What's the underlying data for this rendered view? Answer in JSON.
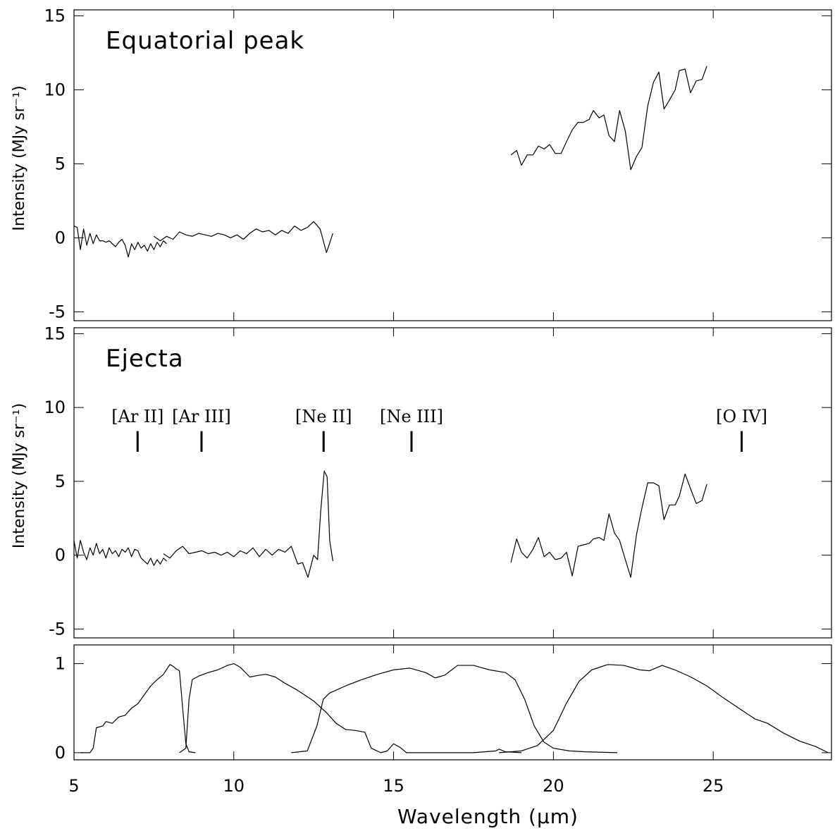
{
  "chart_data": [
    {
      "type": "line",
      "title": "Equatorial peak",
      "ylabel": "Intensity (MJy sr⁻¹)",
      "xlim": [
        5,
        28.7
      ],
      "xticks": [
        5,
        10,
        15,
        20,
        25
      ],
      "ylim": [
        -5.6,
        15.4
      ],
      "yticks": [
        -5,
        0,
        5,
        10,
        15
      ],
      "grid": false,
      "series": [
        {
          "color": "#000000",
          "x": [
            5.0,
            5.1,
            5.2,
            5.3,
            5.4,
            5.5,
            5.6,
            5.7,
            5.8,
            5.9,
            6.0,
            6.1,
            6.2,
            6.3,
            6.4,
            6.5,
            6.6,
            6.7,
            6.8,
            6.9,
            7.0,
            7.1,
            7.2,
            7.3,
            7.4,
            7.5,
            7.6,
            7.7,
            7.8,
            7.9
          ],
          "values": [
            0.8,
            0.7,
            -0.8,
            0.6,
            -0.5,
            0.3,
            -0.4,
            0.2,
            -0.2,
            -0.2,
            -0.3,
            -0.2,
            -0.4,
            -0.6,
            -0.3,
            -0.1,
            -0.5,
            -1.3,
            -0.4,
            -0.8,
            -0.3,
            -0.7,
            -0.5,
            -0.9,
            -0.4,
            -0.8,
            -0.3,
            -0.6,
            -0.2,
            -0.4
          ]
        },
        {
          "color": "#000000",
          "x": [
            7.5,
            7.7,
            7.9,
            8.1,
            8.3,
            8.5,
            8.7,
            8.9,
            9.1,
            9.3,
            9.5,
            9.7,
            9.9,
            10.1,
            10.3,
            10.5,
            10.7,
            10.9,
            11.1,
            11.3,
            11.5,
            11.7,
            11.9,
            12.1,
            12.3,
            12.5,
            12.7,
            12.9,
            13.1
          ],
          "values": [
            0.1,
            -0.2,
            0.1,
            -0.1,
            0.4,
            0.2,
            0.1,
            0.3,
            0.2,
            0.1,
            0.3,
            0.2,
            0.0,
            0.2,
            -0.1,
            0.3,
            0.6,
            0.4,
            0.5,
            0.2,
            0.5,
            0.3,
            0.8,
            0.5,
            0.7,
            1.1,
            0.6,
            -1.0,
            0.3
          ]
        },
        {
          "color": "#000000",
          "x": [
            18.67,
            18.85,
            19.0,
            19.18,
            19.36,
            19.53,
            19.71,
            19.88,
            20.06,
            20.24,
            20.41,
            20.59,
            20.77,
            20.94,
            21.12,
            21.25,
            21.43,
            21.58,
            21.74,
            21.91,
            22.07,
            22.25,
            22.42,
            22.6,
            22.77,
            22.95,
            23.13,
            23.3,
            23.46,
            23.63,
            23.81,
            23.94,
            24.12,
            24.29,
            24.47,
            24.65,
            24.8
          ],
          "values": [
            5.6,
            5.9,
            4.9,
            5.6,
            5.6,
            6.2,
            6.0,
            6.3,
            5.7,
            5.7,
            6.5,
            7.3,
            7.8,
            7.8,
            8.0,
            8.6,
            8.1,
            8.3,
            6.9,
            6.5,
            8.6,
            7.2,
            4.6,
            5.5,
            6.1,
            8.9,
            10.5,
            11.2,
            8.7,
            9.3,
            10.0,
            11.3,
            11.4,
            9.8,
            10.6,
            10.7,
            11.6
          ]
        }
      ]
    },
    {
      "type": "line",
      "title": "Ejecta",
      "ylabel": "Intensity (MJy sr⁻¹)",
      "xlim": [
        5,
        28.7
      ],
      "xticks": [
        5,
        10,
        15,
        20,
        25
      ],
      "ylim": [
        -5.6,
        15.4
      ],
      "yticks": [
        -5,
        0,
        5,
        10,
        15
      ],
      "grid": false,
      "lines": [
        {
          "label": "[Ar II]",
          "x": 6.99
        },
        {
          "label": "[Ar III]",
          "x": 8.99
        },
        {
          "label": "[Ne II]",
          "x": 12.81
        },
        {
          "label": "[Ne III]",
          "x": 15.56
        },
        {
          "label": "[O IV]",
          "x": 25.89
        }
      ],
      "series": [
        {
          "color": "#000000",
          "x": [
            5.0,
            5.1,
            5.2,
            5.3,
            5.4,
            5.5,
            5.6,
            5.7,
            5.8,
            5.9,
            6.0,
            6.1,
            6.2,
            6.3,
            6.4,
            6.5,
            6.6,
            6.7,
            6.8,
            6.9,
            7.0,
            7.1,
            7.2,
            7.3,
            7.4,
            7.5,
            7.6,
            7.7,
            7.8,
            7.9
          ],
          "values": [
            1.0,
            -0.2,
            1.0,
            0.2,
            -0.3,
            0.5,
            0.0,
            0.8,
            0.1,
            0.4,
            -0.2,
            0.5,
            0.1,
            0.3,
            -0.1,
            0.4,
            0.2,
            0.5,
            -0.1,
            0.4,
            0.3,
            -0.2,
            -0.4,
            -0.6,
            -0.2,
            -0.7,
            -0.3,
            -0.6,
            -0.2,
            -0.4
          ]
        },
        {
          "color": "#000000",
          "x": [
            7.8,
            8.0,
            8.2,
            8.4,
            8.6,
            8.8,
            9.0,
            9.2,
            9.4,
            9.6,
            9.8,
            10.0,
            10.2,
            10.4,
            10.6,
            10.8,
            11.0,
            11.2,
            11.4,
            11.6,
            11.8,
            12.0,
            12.15,
            12.32,
            12.5,
            12.62,
            12.72,
            12.83,
            12.92,
            13.0,
            13.1
          ],
          "values": [
            0.1,
            -0.2,
            0.3,
            0.6,
            0.1,
            0.2,
            0.3,
            0.1,
            0.2,
            0.0,
            0.2,
            -0.1,
            0.3,
            0.1,
            0.5,
            -0.1,
            0.4,
            0.0,
            0.4,
            0.2,
            0.6,
            -0.6,
            -0.5,
            -1.5,
            0.0,
            -0.3,
            3.0,
            5.7,
            5.3,
            1.0,
            -0.4
          ]
        },
        {
          "color": "#000000",
          "x": [
            18.67,
            18.85,
            19.0,
            19.18,
            19.36,
            19.53,
            19.71,
            19.88,
            20.06,
            20.24,
            20.41,
            20.59,
            20.77,
            20.94,
            21.12,
            21.25,
            21.43,
            21.58,
            21.74,
            21.91,
            22.07,
            22.25,
            22.42,
            22.6,
            22.77,
            22.95,
            23.13,
            23.3,
            23.46,
            23.63,
            23.81,
            23.94,
            24.12,
            24.29,
            24.47,
            24.65,
            24.8
          ],
          "values": [
            -0.5,
            1.1,
            0.2,
            -0.2,
            0.4,
            1.2,
            -0.1,
            0.2,
            -0.3,
            -0.2,
            0.2,
            -1.4,
            0.6,
            0.7,
            0.8,
            1.1,
            1.2,
            1.0,
            2.8,
            1.5,
            1.0,
            -0.3,
            -1.5,
            1.4,
            3.2,
            4.9,
            4.9,
            4.7,
            2.4,
            3.4,
            3.4,
            4.0,
            5.5,
            4.5,
            3.5,
            3.7,
            4.8
          ]
        }
      ]
    },
    {
      "type": "line",
      "xlabel": "Wavelength (μm)",
      "xlim": [
        5,
        28.7
      ],
      "xticks": [
        5,
        10,
        15,
        20,
        25
      ],
      "ylim": [
        -0.08,
        1.21
      ],
      "yticks": [
        0,
        1
      ],
      "grid": false,
      "series": [
        {
          "color": "#000000",
          "x": [
            5.2,
            5.5,
            5.6,
            5.7,
            5.9,
            6.0,
            6.2,
            6.4,
            6.6,
            6.8,
            7.0,
            7.2,
            7.4,
            7.6,
            7.8,
            8.0,
            8.1,
            8.2,
            8.3,
            8.4,
            8.5,
            8.6,
            8.8
          ],
          "values": [
            0,
            0,
            0.05,
            0.28,
            0.3,
            0.35,
            0.33,
            0.4,
            0.42,
            0.5,
            0.55,
            0.65,
            0.75,
            0.82,
            0.88,
            0.99,
            0.97,
            0.94,
            0.92,
            0.5,
            0.1,
            0.01,
            0
          ]
        },
        {
          "color": "#000000",
          "x": [
            8.3,
            8.5,
            8.6,
            8.7,
            8.9,
            9.2,
            9.5,
            9.8,
            10.0,
            10.2,
            10.5,
            10.8,
            11.0,
            11.3,
            11.6,
            12.0,
            12.5,
            12.9,
            13.2,
            13.5,
            13.8,
            14.1,
            14.3,
            14.6,
            14.8,
            15.0,
            15.2,
            15.4,
            16.0,
            17.5,
            18.2,
            18.3,
            18.5,
            19.0
          ],
          "values": [
            0,
            0.05,
            0.6,
            0.82,
            0.86,
            0.9,
            0.93,
            0.98,
            1.0,
            0.96,
            0.85,
            0.87,
            0.88,
            0.85,
            0.78,
            0.7,
            0.58,
            0.45,
            0.33,
            0.26,
            0.25,
            0.23,
            0.05,
            0,
            0.02,
            0.1,
            0.06,
            0,
            0,
            0,
            0.02,
            0.04,
            0.01,
            0
          ]
        },
        {
          "color": "#000000",
          "x": [
            11.8,
            12.3,
            12.6,
            12.8,
            13.0,
            13.5,
            14.0,
            14.5,
            15.0,
            15.5,
            16.0,
            16.3,
            16.6,
            17.0,
            17.5,
            18.0,
            18.5,
            18.8,
            19.1,
            19.4,
            19.7,
            20.0,
            20.5,
            21.0,
            22.0
          ],
          "values": [
            0,
            0.02,
            0.3,
            0.6,
            0.67,
            0.75,
            0.82,
            0.88,
            0.93,
            0.95,
            0.9,
            0.84,
            0.87,
            0.98,
            0.98,
            0.93,
            0.9,
            0.82,
            0.6,
            0.3,
            0.12,
            0.05,
            0.02,
            0.01,
            0
          ]
        },
        {
          "color": "#000000",
          "x": [
            18.3,
            19.0,
            19.5,
            20.0,
            20.4,
            20.8,
            21.2,
            21.7,
            22.2,
            22.7,
            23.0,
            23.4,
            23.8,
            24.3,
            24.8,
            25.3,
            25.8,
            26.3,
            26.7,
            27.2,
            27.7,
            28.2,
            28.6
          ],
          "values": [
            0,
            0.02,
            0.08,
            0.25,
            0.55,
            0.8,
            0.93,
            0.99,
            0.98,
            0.93,
            0.92,
            0.98,
            0.93,
            0.85,
            0.75,
            0.62,
            0.5,
            0.38,
            0.33,
            0.22,
            0.13,
            0.07,
            0
          ]
        }
      ]
    }
  ]
}
